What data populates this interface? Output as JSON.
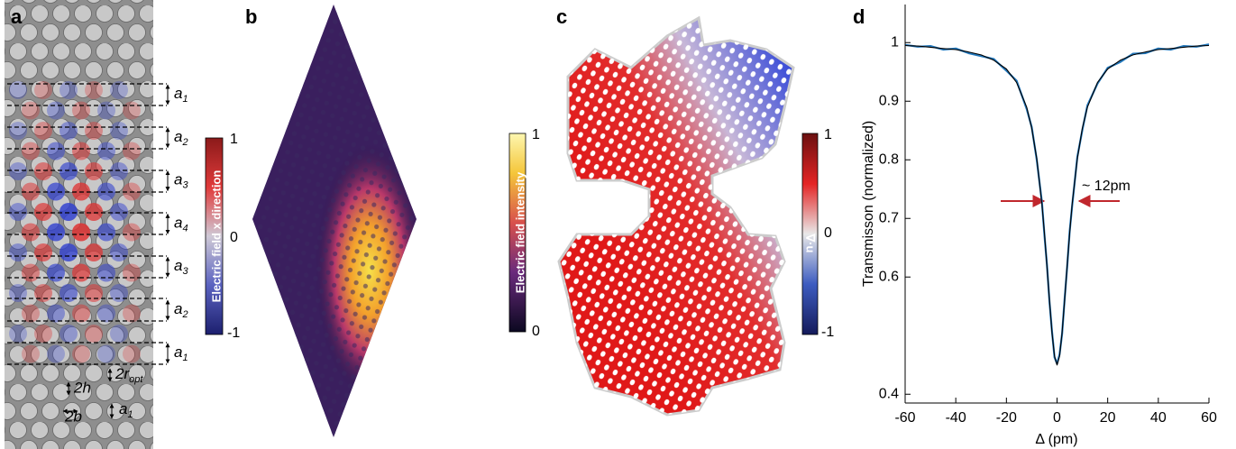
{
  "panel_labels": [
    "a",
    "b",
    "c",
    "d"
  ],
  "panel_a": {
    "spacings": [
      {
        "main": "a",
        "sub": "1"
      },
      {
        "main": "a",
        "sub": "2"
      },
      {
        "main": "a",
        "sub": "3"
      },
      {
        "main": "a",
        "sub": "4"
      },
      {
        "main": "a",
        "sub": "3"
      },
      {
        "main": "a",
        "sub": "2"
      },
      {
        "main": "a",
        "sub": "1"
      }
    ],
    "hole_height": "2h",
    "hole_width": "2b",
    "radius": {
      "main": "2r",
      "sub": "opt"
    },
    "pitch": {
      "main": "a",
      "sub": "1"
    }
  },
  "colorbars": [
    {
      "label": "Electric field x direction",
      "ticks": [
        "1",
        "0",
        "-1"
      ]
    },
    {
      "label": "Electric field intensity",
      "ticks": [
        "1",
        "0"
      ]
    },
    {
      "label": "∇·u",
      "ticks": [
        "1",
        "0",
        "-1"
      ]
    }
  ],
  "chart_data": {
    "type": "line",
    "x_label": "Δ (pm)",
    "y_label": "Transmisson (normalized)",
    "annotation": "~ 12pm",
    "x": [
      -60,
      -55,
      -50,
      -45,
      -40,
      -35,
      -30,
      -25,
      -20,
      -16,
      -12,
      -10,
      -8,
      -6,
      -5,
      -4,
      -3,
      -2,
      -1,
      0,
      1,
      2,
      3,
      4,
      5,
      6,
      8,
      10,
      12,
      16,
      20,
      25,
      30,
      35,
      40,
      45,
      50,
      55,
      60
    ],
    "series": [
      {
        "color": "#2277bb",
        "values": [
          0.996,
          0.993,
          0.994,
          0.988,
          0.99,
          0.982,
          0.977,
          0.972,
          0.952,
          0.935,
          0.887,
          0.856,
          0.8,
          0.728,
          0.672,
          0.621,
          0.558,
          0.507,
          0.463,
          0.452,
          0.468,
          0.503,
          0.562,
          0.617,
          0.678,
          0.722,
          0.805,
          0.851,
          0.893,
          0.93,
          0.957,
          0.967,
          0.981,
          0.982,
          0.99,
          0.988,
          0.994,
          0.993,
          0.997
        ]
      },
      {
        "color": "#000000",
        "values": [
          0.995,
          0.994,
          0.992,
          0.99,
          0.988,
          0.984,
          0.979,
          0.97,
          0.955,
          0.932,
          0.89,
          0.854,
          0.802,
          0.725,
          0.675,
          0.619,
          0.56,
          0.505,
          0.465,
          0.45,
          0.465,
          0.505,
          0.56,
          0.619,
          0.675,
          0.725,
          0.802,
          0.854,
          0.89,
          0.932,
          0.955,
          0.97,
          0.979,
          0.984,
          0.988,
          0.99,
          0.992,
          0.994,
          0.995
        ]
      }
    ],
    "xlim": [
      -60,
      60
    ],
    "xticks": [
      -60,
      -40,
      -20,
      0,
      20,
      40,
      60
    ],
    "ylim": [
      0.385,
      1.065
    ],
    "yticks": [
      0.4,
      0.6,
      0.7,
      0.8,
      0.9,
      1
    ]
  }
}
